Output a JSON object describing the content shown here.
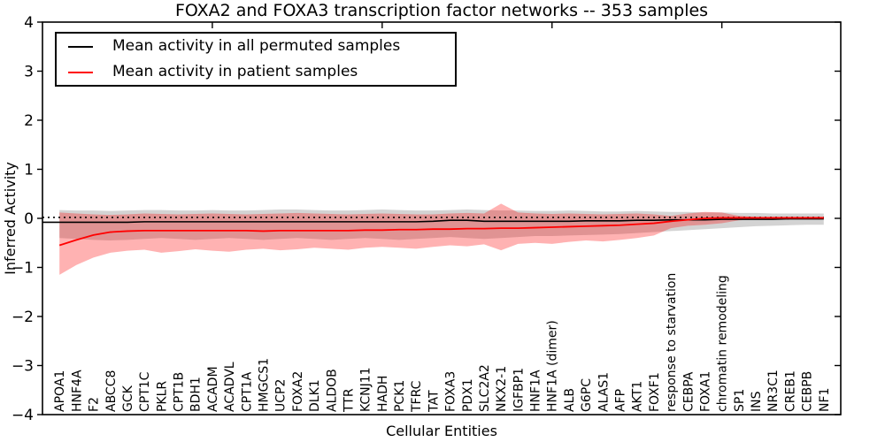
{
  "title": "FOXA2 and FOXA3 transcription factor networks -- 353 samples",
  "xlabel": "Cellular Entities",
  "ylabel": "Inferred Activity",
  "legend": {
    "items": [
      {
        "label": "Mean activity in all permuted samples",
        "color": "#000000"
      },
      {
        "label": "Mean activity in patient samples",
        "color": "#ff0000"
      }
    ]
  },
  "chart_data": {
    "type": "line",
    "title": "FOXA2 and FOXA3 transcription factor networks -- 353 samples",
    "xlabel": "Cellular Entities",
    "ylabel": "Inferred Activity",
    "ylim": [
      -4,
      4
    ],
    "xlim_index": [
      -1,
      46
    ],
    "grid": false,
    "legend_position": "upper left",
    "ytick_values": [
      4,
      3,
      2,
      1,
      0,
      -1,
      -2,
      -3,
      -4
    ],
    "ytick_labels": [
      "4",
      "3",
      "2",
      "1",
      "0",
      "−1",
      "−2",
      "−3",
      "−4"
    ],
    "top_tick_indices": [
      9,
      19,
      29,
      39
    ],
    "categories": [
      "APOA1",
      "HNF4A",
      "F2",
      "ABCC8",
      "GCK",
      "CPT1C",
      "PKLR",
      "CPT1B",
      "BDH1",
      "ACADM",
      "ACADVL",
      "CPT1A",
      "HMGCS1",
      "UCP2",
      "FOXA2",
      "DLK1",
      "ALDOB",
      "TTR",
      "KCNJ11",
      "HADH",
      "PCK1",
      "TFRC",
      "TAT",
      "FOXA3",
      "PDX1",
      "SLC2A2",
      "NKX2-1",
      "IGFBP1",
      "HNF1A",
      "HNF1A (dimer)",
      "ALB",
      "G6PC",
      "ALAS1",
      "AFP",
      "AKT1",
      "FOXF1",
      "response to starvation",
      "CEBPA",
      "FOXA1",
      "chromatin remodeling",
      "SP1",
      "INS",
      "NR3C1",
      "CREB1",
      "CEBPB",
      "NF1"
    ],
    "reference_line": {
      "label": "zero reference",
      "style": "dotted",
      "color": "#000000",
      "value": 0.02
    },
    "series": [
      {
        "name": "Mean activity in all permuted samples",
        "color": "#000000",
        "style": "solid",
        "width": 1.6,
        "values": [
          -0.08,
          -0.08,
          -0.08,
          -0.08,
          -0.08,
          -0.07,
          -0.07,
          -0.07,
          -0.07,
          -0.07,
          -0.07,
          -0.07,
          -0.07,
          -0.07,
          -0.07,
          -0.07,
          -0.07,
          -0.07,
          -0.07,
          -0.07,
          -0.07,
          -0.07,
          -0.06,
          -0.04,
          -0.04,
          -0.06,
          -0.06,
          -0.06,
          -0.06,
          -0.06,
          -0.06,
          -0.05,
          -0.05,
          -0.05,
          -0.04,
          -0.04,
          -0.03,
          -0.03,
          -0.03,
          -0.02,
          -0.02,
          -0.02,
          -0.02,
          -0.01,
          -0.01,
          -0.01
        ]
      },
      {
        "name": "Mean activity in patient samples",
        "color": "#ff0000",
        "style": "solid",
        "width": 1.8,
        "values": [
          -0.55,
          -0.44,
          -0.34,
          -0.28,
          -0.26,
          -0.25,
          -0.25,
          -0.25,
          -0.25,
          -0.25,
          -0.25,
          -0.25,
          -0.26,
          -0.25,
          -0.25,
          -0.25,
          -0.25,
          -0.25,
          -0.24,
          -0.24,
          -0.23,
          -0.23,
          -0.22,
          -0.22,
          -0.21,
          -0.21,
          -0.2,
          -0.2,
          -0.19,
          -0.18,
          -0.17,
          -0.16,
          -0.15,
          -0.14,
          -0.12,
          -0.1,
          -0.06,
          -0.03,
          0.0,
          0.01,
          0.01,
          0.01,
          0.01,
          0.01,
          0.01,
          0.01
        ]
      }
    ],
    "bands": [
      {
        "name": "permuted samples range",
        "color": "#808080",
        "alpha": 0.35,
        "upper": [
          0.17,
          0.16,
          0.16,
          0.15,
          0.16,
          0.17,
          0.17,
          0.16,
          0.16,
          0.17,
          0.16,
          0.16,
          0.17,
          0.18,
          0.18,
          0.17,
          0.16,
          0.16,
          0.17,
          0.18,
          0.17,
          0.16,
          0.16,
          0.17,
          0.18,
          0.17,
          0.16,
          0.16,
          0.15,
          0.15,
          0.16,
          0.15,
          0.14,
          0.14,
          0.15,
          0.14,
          0.13,
          0.13,
          0.12,
          0.12,
          0.11,
          0.11,
          0.1,
          0.1,
          0.1,
          0.1
        ],
        "lower": [
          -0.4,
          -0.42,
          -0.44,
          -0.45,
          -0.44,
          -0.42,
          -0.4,
          -0.42,
          -0.44,
          -0.42,
          -0.4,
          -0.42,
          -0.44,
          -0.42,
          -0.4,
          -0.42,
          -0.44,
          -0.42,
          -0.4,
          -0.42,
          -0.44,
          -0.42,
          -0.4,
          -0.38,
          -0.4,
          -0.42,
          -0.4,
          -0.38,
          -0.36,
          -0.36,
          -0.35,
          -0.34,
          -0.33,
          -0.32,
          -0.3,
          -0.28,
          -0.26,
          -0.24,
          -0.22,
          -0.2,
          -0.18,
          -0.16,
          -0.15,
          -0.14,
          -0.13,
          -0.13
        ]
      },
      {
        "name": "patient samples range",
        "color": "#ff0000",
        "alpha": 0.3,
        "upper": [
          0.12,
          0.1,
          0.08,
          0.07,
          0.08,
          0.1,
          0.09,
          0.08,
          0.09,
          0.1,
          0.09,
          0.08,
          0.09,
          0.1,
          0.11,
          0.1,
          0.09,
          0.08,
          0.09,
          0.1,
          0.09,
          0.08,
          0.08,
          0.1,
          0.11,
          0.1,
          0.3,
          0.12,
          0.1,
          0.09,
          0.1,
          0.09,
          0.08,
          0.09,
          0.1,
          0.08,
          0.05,
          0.1,
          0.13,
          0.12,
          0.05,
          0.03,
          0.03,
          0.03,
          0.03,
          0.03
        ],
        "lower": [
          -1.15,
          -0.95,
          -0.8,
          -0.7,
          -0.66,
          -0.64,
          -0.7,
          -0.67,
          -0.63,
          -0.66,
          -0.68,
          -0.64,
          -0.62,
          -0.65,
          -0.63,
          -0.6,
          -0.62,
          -0.64,
          -0.6,
          -0.58,
          -0.6,
          -0.62,
          -0.58,
          -0.55,
          -0.57,
          -0.53,
          -0.65,
          -0.52,
          -0.5,
          -0.52,
          -0.48,
          -0.45,
          -0.47,
          -0.44,
          -0.4,
          -0.35,
          -0.2,
          -0.15,
          -0.13,
          -0.1,
          -0.04,
          -0.02,
          -0.02,
          -0.02,
          -0.02,
          -0.02
        ]
      }
    ]
  }
}
